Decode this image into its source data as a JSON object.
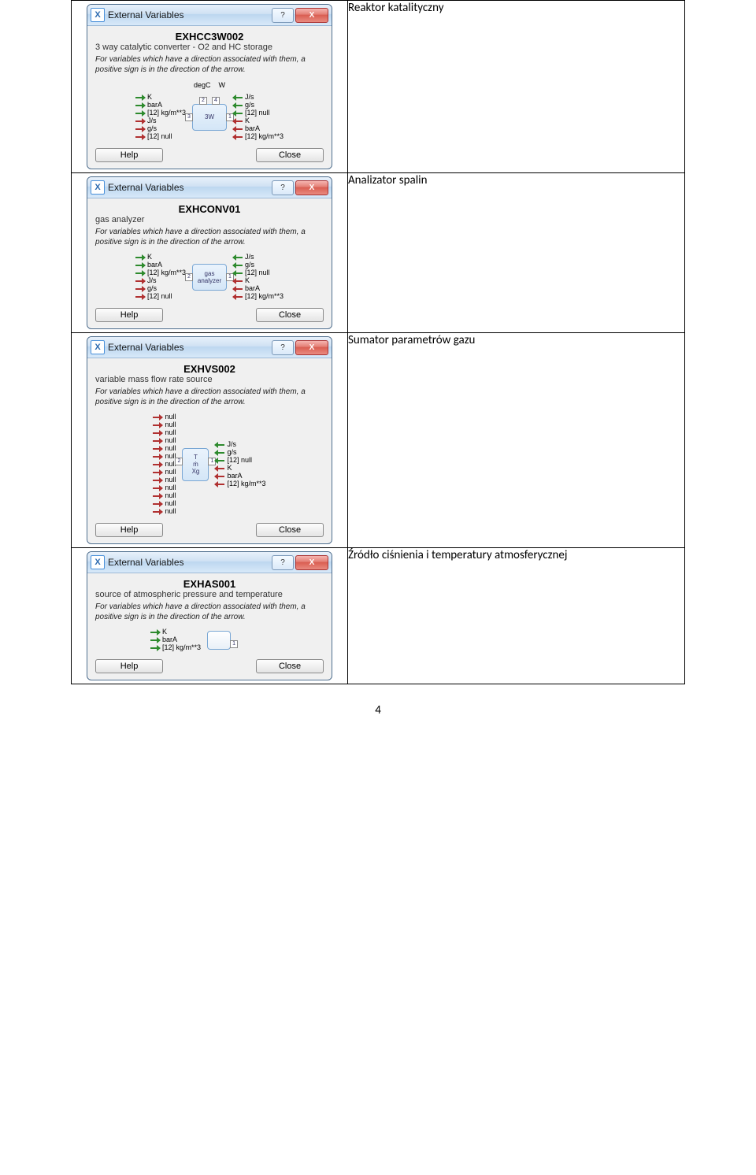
{
  "page_number": "4",
  "dialog_title": "External Variables",
  "help_label": "Help",
  "close_label": "Close",
  "note_text": "For variables which have a direction associated with them, a positive sign is in the direction of the arrow.",
  "rows": [
    {
      "desc": "Reaktor katalityczny",
      "name": "EXHCC3W002",
      "sub": "3 way catalytic converter - O2 and HC storage",
      "top_ports": [
        "degC",
        "W"
      ],
      "left_ports": [
        {
          "c": "green",
          "t": "K"
        },
        {
          "c": "green",
          "t": "barA"
        },
        {
          "c": "green",
          "t": "[12] kg/m**3"
        },
        {
          "c": "red",
          "t": "J/s"
        },
        {
          "c": "red",
          "t": "g/s"
        },
        {
          "c": "red",
          "t": "[12] null"
        }
      ],
      "right_ports": [
        {
          "c": "green",
          "t": "J/s"
        },
        {
          "c": "green",
          "t": "g/s"
        },
        {
          "c": "green",
          "t": "[12] null"
        },
        {
          "c": "red",
          "t": "K"
        },
        {
          "c": "red",
          "t": "barA"
        },
        {
          "c": "red",
          "t": "[12] kg/m**3"
        }
      ],
      "center_label": "3W"
    },
    {
      "desc": "Analizator spalin",
      "name": "EXHCONV01",
      "sub": "gas analyzer",
      "left_ports": [
        {
          "c": "green",
          "t": "K"
        },
        {
          "c": "green",
          "t": "barA"
        },
        {
          "c": "green",
          "t": "[12] kg/m**3"
        },
        {
          "c": "red",
          "t": "J/s"
        },
        {
          "c": "red",
          "t": "g/s"
        },
        {
          "c": "red",
          "t": "[12] null"
        }
      ],
      "right_ports": [
        {
          "c": "green",
          "t": "J/s"
        },
        {
          "c": "green",
          "t": "g/s"
        },
        {
          "c": "green",
          "t": "[12] null"
        },
        {
          "c": "red",
          "t": "K"
        },
        {
          "c": "red",
          "t": "barA"
        },
        {
          "c": "red",
          "t": "[12] kg/m**3"
        }
      ],
      "center_label": "gas\nanalyzer"
    },
    {
      "desc": "Sumator parametrów gazu",
      "name": "EXHVS002",
      "sub": "variable mass flow rate source",
      "left_ports": [
        {
          "c": "red",
          "t": "null"
        },
        {
          "c": "red",
          "t": "null"
        },
        {
          "c": "red",
          "t": "null"
        },
        {
          "c": "red",
          "t": "null"
        },
        {
          "c": "red",
          "t": "null"
        },
        {
          "c": "red",
          "t": "null"
        },
        {
          "c": "red",
          "t": "null"
        },
        {
          "c": "red",
          "t": "null"
        },
        {
          "c": "red",
          "t": "null"
        },
        {
          "c": "red",
          "t": "null"
        },
        {
          "c": "red",
          "t": "null"
        },
        {
          "c": "red",
          "t": "null"
        },
        {
          "c": "red",
          "t": "null"
        }
      ],
      "right_ports": [
        {
          "c": "green",
          "t": "J/s"
        },
        {
          "c": "green",
          "t": "g/s"
        },
        {
          "c": "green",
          "t": "[12] null"
        },
        {
          "c": "red",
          "t": "K"
        },
        {
          "c": "red",
          "t": "barA"
        },
        {
          "c": "red",
          "t": "[12] kg/m**3"
        }
      ],
      "center_label": "T\nṁ\nXg"
    },
    {
      "desc": "Źródło ciśnienia i temperatury atmosferycznej",
      "name": "EXHAS001",
      "sub": "source of atmospheric pressure and temperature",
      "left_ports": [
        {
          "c": "green",
          "t": "K"
        },
        {
          "c": "green",
          "t": "barA"
        },
        {
          "c": "green",
          "t": "[12] kg/m**3"
        }
      ],
      "right_ports": [],
      "center_label": ""
    }
  ]
}
